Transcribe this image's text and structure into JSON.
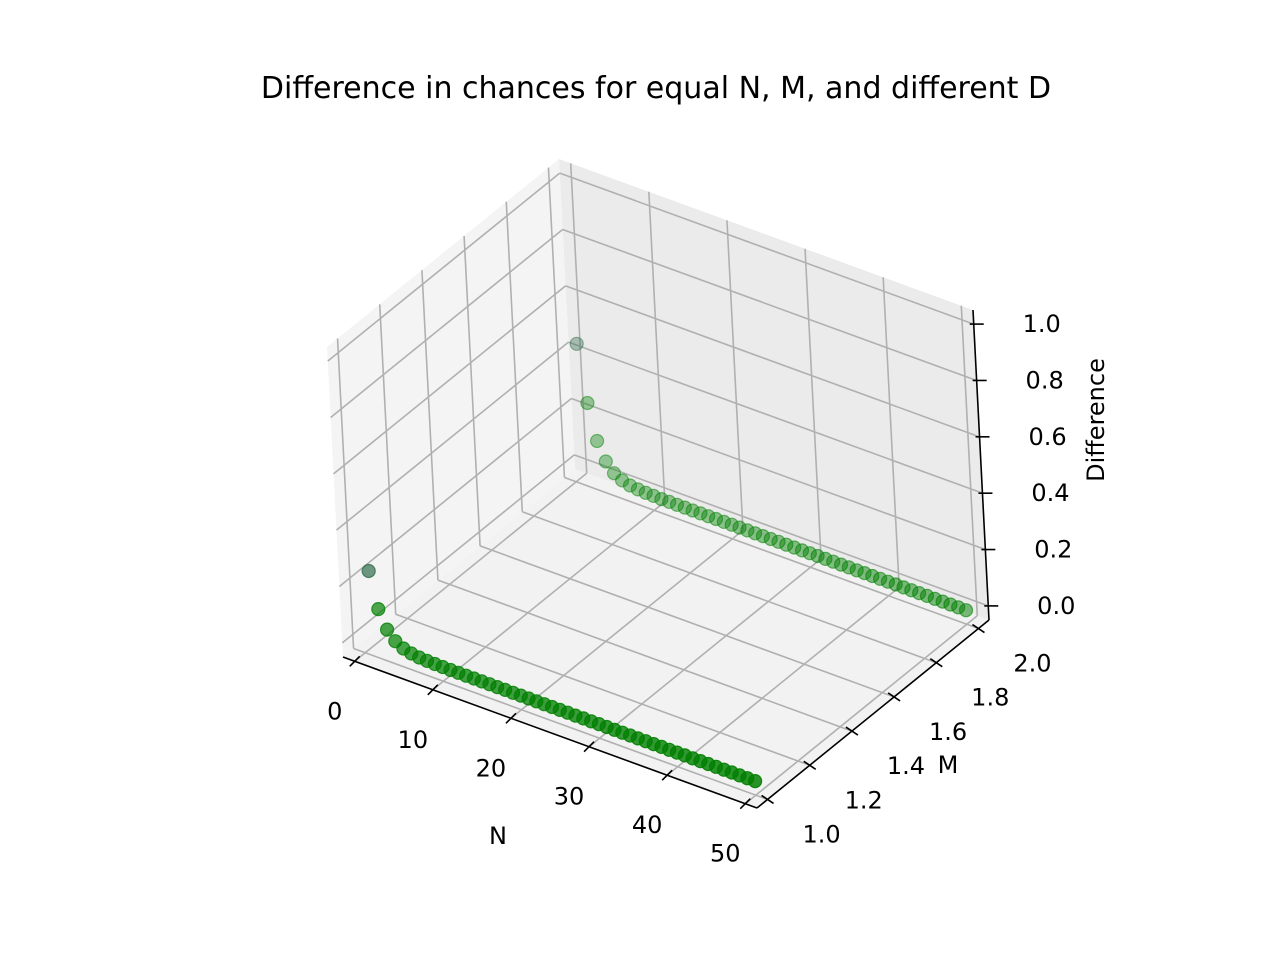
{
  "chart_data": {
    "type": "scatter",
    "projection": "3d",
    "title": "Difference in chances for equal N, M, and different D",
    "xlabel": "N",
    "ylabel": "M",
    "zlabel": "Difference",
    "xlim": [
      -1.5,
      51.5
    ],
    "ylim": [
      0.95,
      2.05
    ],
    "zlim": [
      -0.05,
      1.05
    ],
    "xticks": [
      "0",
      "10",
      "20",
      "30",
      "40",
      "50"
    ],
    "yticks": [
      "1.0",
      "1.2",
      "1.4",
      "1.6",
      "1.8",
      "2.0"
    ],
    "zticks": [
      "0.0",
      "0.2",
      "0.4",
      "0.6",
      "0.8",
      "1.0"
    ],
    "grid": true,
    "color": "#008000",
    "series": [
      {
        "m": 1,
        "n": [
          1,
          2,
          3,
          4,
          5,
          6,
          7,
          8,
          9,
          10,
          11,
          12,
          13,
          14,
          15,
          16,
          17,
          18,
          19,
          20,
          21,
          22,
          23,
          24,
          25,
          26,
          27,
          28,
          29,
          30,
          31,
          32,
          33,
          34,
          35,
          36,
          37,
          38,
          39,
          40,
          41,
          42,
          43,
          44,
          45,
          46,
          47,
          48,
          49,
          50
        ],
        "difference": [
          0.25,
          0.125,
          0.0625,
          0.03125,
          0.015625,
          0.0078125,
          0.00390625,
          0.001953125,
          0.0009765625,
          0.00048828125,
          0,
          0,
          0,
          0,
          0,
          0,
          0,
          0,
          0,
          0,
          0,
          0,
          0,
          0,
          0,
          0,
          0,
          0,
          0,
          0,
          0,
          0,
          0,
          0,
          0,
          0,
          0,
          0,
          0,
          0,
          0,
          0,
          0,
          0,
          0,
          0,
          0,
          0,
          0,
          0
        ]
      },
      {
        "m": 2,
        "n": [
          1,
          2,
          3,
          4,
          5,
          6,
          7,
          8,
          9,
          10,
          11,
          12,
          13,
          14,
          15,
          16,
          17,
          18,
          19,
          20,
          21,
          22,
          23,
          24,
          25,
          26,
          27,
          28,
          29,
          30,
          31,
          32,
          33,
          34,
          35,
          36,
          37,
          38,
          39,
          40,
          41,
          42,
          43,
          44,
          45,
          46,
          47,
          48,
          49,
          50
        ],
        "difference": [
          0.45,
          0.25,
          0.125,
          0.0625,
          0.03125,
          0.015625,
          0.0078125,
          0.00390625,
          0.001953125,
          0.0009765625,
          0,
          0,
          0,
          0,
          0,
          0,
          0,
          0,
          0,
          0,
          0,
          0,
          0,
          0,
          0,
          0,
          0,
          0,
          0,
          0,
          0,
          0,
          0,
          0,
          0,
          0,
          0,
          0,
          0,
          0,
          0,
          0,
          0,
          0,
          0,
          0,
          0,
          0,
          0,
          0
        ]
      }
    ]
  }
}
